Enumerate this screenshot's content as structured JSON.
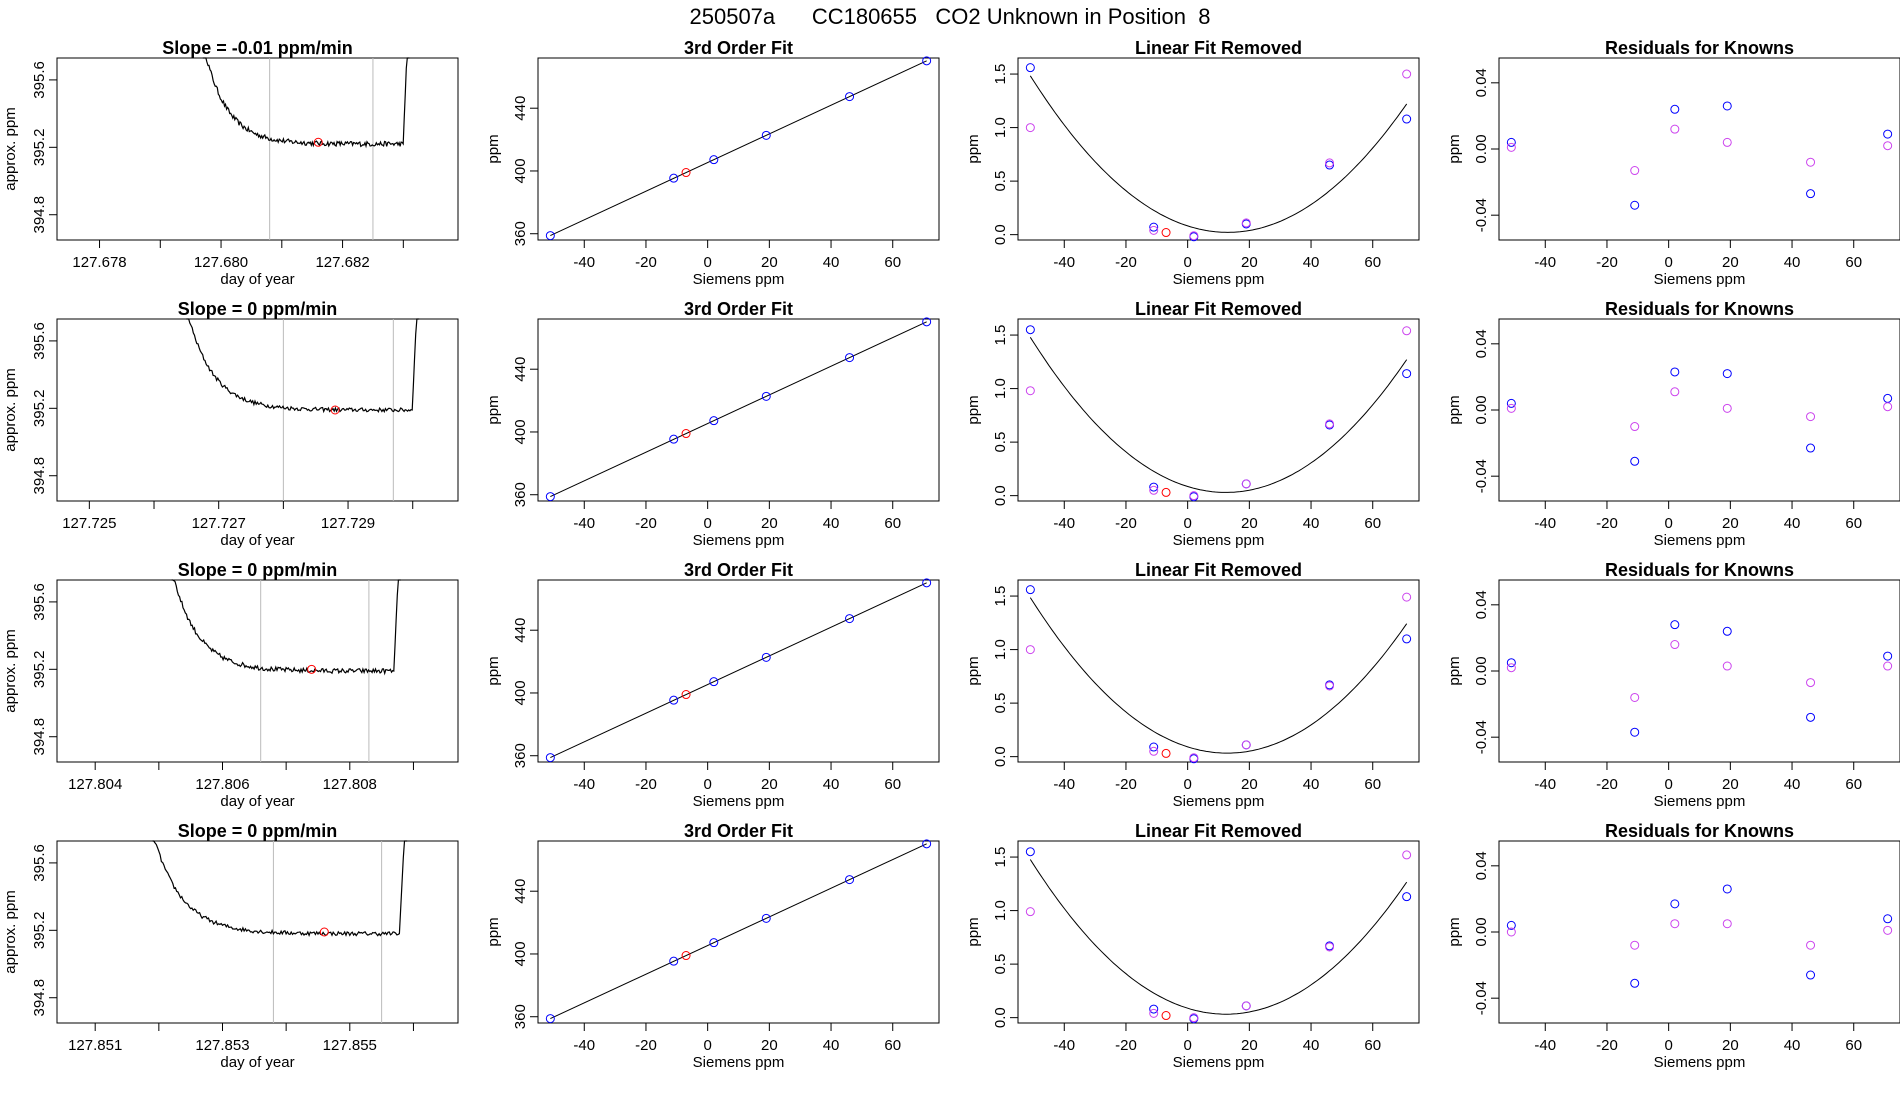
{
  "figure": {
    "title": "250507a      CC180655   CO2 Unknown in Position  8"
  },
  "colors": {
    "known": "#0000ff",
    "residual_alt": "#cc44ee",
    "unknown": "#ff0000",
    "cursor_lines": "#bbbbbb",
    "line": "#000000"
  },
  "chart_data": [
    {
      "row": 1,
      "type": "line",
      "title": "Slope =  -0.01  ppm/min",
      "xlabel": "day of year",
      "ylabel": "approx. ppm",
      "xlim": [
        127.6773,
        127.6839
      ],
      "ylim": [
        394.65,
        395.73
      ],
      "xticks": [
        127.678,
        127.68,
        127.682
      ],
      "xtick_labels": [
        "127.678",
        "127.680",
        "127.682"
      ],
      "xticks_minor": [
        127.679,
        127.681,
        127.683
      ],
      "yticks": [
        394.8,
        395.2,
        395.6
      ],
      "ytick_labels": [
        "394.8",
        "395.2",
        "395.6"
      ],
      "vlines": [
        127.6808,
        127.6825
      ],
      "trace": {
        "x_start": 127.6797,
        "x_end": 127.6831,
        "points": 200,
        "plateau": 395.22,
        "noise": 0.015
      },
      "marker": {
        "x": 127.6816,
        "y": 395.23
      }
    },
    {
      "row": 1,
      "type": "scatter",
      "title": "3rd Order Fit",
      "xlabel": "Siemens ppm",
      "ylabel": "ppm",
      "xlim": [
        -55,
        75
      ],
      "ylim": [
        356,
        472
      ],
      "xticks": [
        -40,
        -20,
        0,
        20,
        40,
        60
      ],
      "xtick_labels": [
        "-40",
        "-20",
        "0",
        "20",
        "40",
        "60"
      ],
      "yticks": [
        360,
        400,
        440
      ],
      "ytick_labels": [
        "360",
        "400",
        "440"
      ],
      "fit_line": [
        [
          -51,
          358.8
        ],
        [
          71,
          470.2
        ]
      ],
      "series": [
        {
          "color": "known",
          "x": [
            -51,
            -11,
            2,
            19,
            46,
            71
          ],
          "y": [
            358.8,
            395.4,
            407.2,
            422.7,
            447.4,
            470.2
          ]
        },
        {
          "color": "unknown",
          "x": [
            -7
          ],
          "y": [
            399.0
          ]
        }
      ]
    },
    {
      "row": 1,
      "type": "scatter",
      "title": "Linear Fit Removed",
      "xlabel": "Siemens ppm",
      "ylabel": "ppm",
      "xlim": [
        -55,
        75
      ],
      "ylim": [
        -0.05,
        1.65
      ],
      "xticks": [
        -40,
        -20,
        0,
        20,
        40,
        60
      ],
      "xtick_labels": [
        "-40",
        "-20",
        "0",
        "20",
        "40",
        "60"
      ],
      "yticks": [
        0.0,
        0.5,
        1.0,
        1.5
      ],
      "ytick_labels": [
        "0.0",
        "0.5",
        "1.0",
        "1.5"
      ],
      "series": [
        {
          "color": "known",
          "x": [
            -51,
            -11,
            2,
            19,
            46,
            71
          ],
          "y": [
            1.56,
            0.07,
            -0.02,
            0.1,
            0.65,
            1.08
          ]
        },
        {
          "color": "residual_alt",
          "x": [
            -51,
            -11,
            2,
            19,
            46,
            71
          ],
          "y": [
            1.0,
            0.04,
            -0.01,
            0.11,
            0.67,
            1.5
          ]
        },
        {
          "color": "unknown",
          "x": [
            -7
          ],
          "y": [
            0.02
          ]
        }
      ]
    },
    {
      "row": 1,
      "type": "scatter",
      "title": "Residuals for Knowns",
      "xlabel": "Siemens ppm",
      "ylabel": "ppm",
      "xlim": [
        -55,
        75
      ],
      "ylim": [
        -0.055,
        0.055
      ],
      "xticks": [
        -40,
        -20,
        0,
        20,
        40,
        60
      ],
      "xtick_labels": [
        "-40",
        "-20",
        "0",
        "20",
        "40",
        "60"
      ],
      "yticks": [
        -0.04,
        0.0,
        0.04
      ],
      "ytick_labels": [
        "-0.04",
        "0.00",
        "0.04"
      ],
      "series": [
        {
          "color": "known",
          "x": [
            -51,
            -11,
            2,
            19,
            46,
            71
          ],
          "y": [
            0.004,
            -0.034,
            0.024,
            0.026,
            -0.027,
            0.009
          ]
        },
        {
          "color": "residual_alt",
          "x": [
            -51,
            -11,
            2,
            19,
            46,
            71
          ],
          "y": [
            0.001,
            -0.013,
            0.012,
            0.004,
            -0.008,
            0.002
          ]
        }
      ]
    },
    {
      "row": 2,
      "type": "line",
      "title": "Slope =  0  ppm/min",
      "xlabel": "day of year",
      "ylabel": "approx. ppm",
      "xlim": [
        127.7245,
        127.7307
      ],
      "ylim": [
        394.65,
        395.73
      ],
      "xticks": [
        127.725,
        127.727,
        127.729
      ],
      "xtick_labels": [
        "127.725",
        "127.727",
        "127.729"
      ],
      "xticks_minor": [
        127.726,
        127.728,
        127.73
      ],
      "yticks": [
        394.8,
        395.2,
        395.6
      ],
      "ytick_labels": [
        "394.8",
        "395.2",
        "395.6"
      ],
      "vlines": [
        127.728,
        127.7297
      ],
      "trace": {
        "x_start": 127.7265,
        "x_end": 127.7301,
        "points": 200,
        "plateau": 395.19,
        "noise": 0.012
      },
      "marker": {
        "x": 127.7288,
        "y": 395.19
      }
    },
    {
      "row": 2,
      "type": "scatter",
      "title": "3rd Order Fit",
      "xlabel": "Siemens ppm",
      "ylabel": "ppm",
      "xlim": [
        -55,
        75
      ],
      "ylim": [
        356,
        472
      ],
      "xticks": [
        -40,
        -20,
        0,
        20,
        40,
        60
      ],
      "xtick_labels": [
        "-40",
        "-20",
        "0",
        "20",
        "40",
        "60"
      ],
      "yticks": [
        360,
        400,
        440
      ],
      "ytick_labels": [
        "360",
        "400",
        "440"
      ],
      "fit_line": [
        [
          -51,
          358.8
        ],
        [
          71,
          470.2
        ]
      ],
      "series": [
        {
          "color": "known",
          "x": [
            -51,
            -11,
            2,
            19,
            46,
            71
          ],
          "y": [
            358.8,
            395.4,
            407.2,
            422.7,
            447.4,
            470.2
          ]
        },
        {
          "color": "unknown",
          "x": [
            -7
          ],
          "y": [
            399.0
          ]
        }
      ]
    },
    {
      "row": 2,
      "type": "scatter",
      "title": "Linear Fit Removed",
      "xlabel": "Siemens ppm",
      "ylabel": "ppm",
      "xlim": [
        -55,
        75
      ],
      "ylim": [
        -0.05,
        1.65
      ],
      "xticks": [
        -40,
        -20,
        0,
        20,
        40,
        60
      ],
      "xtick_labels": [
        "-40",
        "-20",
        "0",
        "20",
        "40",
        "60"
      ],
      "yticks": [
        0.0,
        0.5,
        1.0,
        1.5
      ],
      "ytick_labels": [
        "0.0",
        "0.5",
        "1.0",
        "1.5"
      ],
      "series": [
        {
          "color": "known",
          "x": [
            -51,
            -11,
            2,
            19,
            46,
            71
          ],
          "y": [
            1.55,
            0.08,
            -0.01,
            0.11,
            0.66,
            1.14
          ]
        },
        {
          "color": "residual_alt",
          "x": [
            -51,
            -11,
            2,
            19,
            46,
            71
          ],
          "y": [
            0.98,
            0.05,
            0.0,
            0.11,
            0.67,
            1.54
          ]
        },
        {
          "color": "unknown",
          "x": [
            -7
          ],
          "y": [
            0.03
          ]
        }
      ]
    },
    {
      "row": 2,
      "type": "scatter",
      "title": "Residuals for Knowns",
      "xlabel": "Siemens ppm",
      "ylabel": "ppm",
      "xlim": [
        -55,
        75
      ],
      "ylim": [
        -0.055,
        0.055
      ],
      "xticks": [
        -40,
        -20,
        0,
        20,
        40,
        60
      ],
      "xtick_labels": [
        "-40",
        "-20",
        "0",
        "20",
        "40",
        "60"
      ],
      "yticks": [
        -0.04,
        0.0,
        0.04
      ],
      "ytick_labels": [
        "-0.04",
        "0.00",
        "0.04"
      ],
      "series": [
        {
          "color": "known",
          "x": [
            -51,
            -11,
            2,
            19,
            46,
            71
          ],
          "y": [
            0.004,
            -0.031,
            0.023,
            0.022,
            -0.023,
            0.007
          ]
        },
        {
          "color": "residual_alt",
          "x": [
            -51,
            -11,
            2,
            19,
            46,
            71
          ],
          "y": [
            0.001,
            -0.01,
            0.011,
            0.001,
            -0.004,
            0.002
          ]
        }
      ]
    },
    {
      "row": 3,
      "type": "line",
      "title": "Slope =  0  ppm/min",
      "xlabel": "day of year",
      "ylabel": "approx. ppm",
      "xlim": [
        127.8034,
        127.8097
      ],
      "ylim": [
        394.65,
        395.73
      ],
      "xticks": [
        127.804,
        127.806,
        127.808
      ],
      "xtick_labels": [
        "127.804",
        "127.806",
        "127.808"
      ],
      "xticks_minor": [
        127.805,
        127.807,
        127.809
      ],
      "yticks": [
        394.8,
        395.2,
        395.6
      ],
      "ytick_labels": [
        "394.8",
        "395.2",
        "395.6"
      ],
      "vlines": [
        127.8066,
        127.8083
      ],
      "trace": {
        "x_start": 127.8052,
        "x_end": 127.8088,
        "points": 200,
        "plateau": 395.19,
        "noise": 0.014
      },
      "marker": {
        "x": 127.8074,
        "y": 395.2
      }
    },
    {
      "row": 3,
      "type": "scatter",
      "title": "3rd Order Fit",
      "xlabel": "Siemens ppm",
      "ylabel": "ppm",
      "xlim": [
        -55,
        75
      ],
      "ylim": [
        356,
        472
      ],
      "xticks": [
        -40,
        -20,
        0,
        20,
        40,
        60
      ],
      "xtick_labels": [
        "-40",
        "-20",
        "0",
        "20",
        "40",
        "60"
      ],
      "yticks": [
        360,
        400,
        440
      ],
      "ytick_labels": [
        "360",
        "400",
        "440"
      ],
      "fit_line": [
        [
          -51,
          358.8
        ],
        [
          71,
          470.2
        ]
      ],
      "series": [
        {
          "color": "known",
          "x": [
            -51,
            -11,
            2,
            19,
            46,
            71
          ],
          "y": [
            358.8,
            395.4,
            407.2,
            422.7,
            447.4,
            470.2
          ]
        },
        {
          "color": "unknown",
          "x": [
            -7
          ],
          "y": [
            399.0
          ]
        }
      ]
    },
    {
      "row": 3,
      "type": "scatter",
      "title": "Linear Fit Removed",
      "xlabel": "Siemens ppm",
      "ylabel": "ppm",
      "xlim": [
        -55,
        75
      ],
      "ylim": [
        -0.05,
        1.65
      ],
      "xticks": [
        -40,
        -20,
        0,
        20,
        40,
        60
      ],
      "xtick_labels": [
        "-40",
        "-20",
        "0",
        "20",
        "40",
        "60"
      ],
      "yticks": [
        0.0,
        0.5,
        1.0,
        1.5
      ],
      "ytick_labels": [
        "0.0",
        "0.5",
        "1.0",
        "1.5"
      ],
      "series": [
        {
          "color": "known",
          "x": [
            -51,
            -11,
            2,
            19,
            46,
            71
          ],
          "y": [
            1.56,
            0.09,
            -0.02,
            0.11,
            0.67,
            1.1
          ]
        },
        {
          "color": "residual_alt",
          "x": [
            -51,
            -11,
            2,
            19,
            46,
            71
          ],
          "y": [
            1.0,
            0.05,
            -0.01,
            0.11,
            0.66,
            1.49
          ]
        },
        {
          "color": "unknown",
          "x": [
            -7
          ],
          "y": [
            0.03
          ]
        }
      ]
    },
    {
      "row": 3,
      "type": "scatter",
      "title": "Residuals for Knowns",
      "xlabel": "Siemens ppm",
      "ylabel": "ppm",
      "xlim": [
        -55,
        75
      ],
      "ylim": [
        -0.055,
        0.055
      ],
      "xticks": [
        -40,
        -20,
        0,
        20,
        40,
        60
      ],
      "xtick_labels": [
        "-40",
        "-20",
        "0",
        "20",
        "40",
        "60"
      ],
      "yticks": [
        -0.04,
        0.0,
        0.04
      ],
      "ytick_labels": [
        "-0.04",
        "0.00",
        "0.04"
      ],
      "series": [
        {
          "color": "known",
          "x": [
            -51,
            -11,
            2,
            19,
            46,
            71
          ],
          "y": [
            0.005,
            -0.037,
            0.028,
            0.024,
            -0.028,
            0.009
          ]
        },
        {
          "color": "residual_alt",
          "x": [
            -51,
            -11,
            2,
            19,
            46,
            71
          ],
          "y": [
            0.002,
            -0.016,
            0.016,
            0.003,
            -0.007,
            0.003
          ]
        }
      ]
    },
    {
      "row": 4,
      "type": "line",
      "title": "Slope =  0  ppm/min",
      "xlabel": "day of year",
      "ylabel": "approx. ppm",
      "xlim": [
        127.8504,
        127.8567
      ],
      "ylim": [
        394.65,
        395.73
      ],
      "xticks": [
        127.851,
        127.853,
        127.855
      ],
      "xtick_labels": [
        "127.851",
        "127.853",
        "127.855"
      ],
      "xticks_minor": [
        127.852,
        127.854,
        127.856
      ],
      "yticks": [
        394.8,
        395.2,
        395.6
      ],
      "ytick_labels": [
        "394.8",
        "395.2",
        "395.6"
      ],
      "vlines": [
        127.8538,
        127.8555
      ],
      "trace": {
        "x_start": 127.8519,
        "x_end": 127.8559,
        "points": 200,
        "plateau": 395.18,
        "noise": 0.012
      },
      "marker": {
        "x": 127.8546,
        "y": 395.19
      }
    },
    {
      "row": 4,
      "type": "scatter",
      "title": "3rd Order Fit",
      "xlabel": "Siemens ppm",
      "ylabel": "ppm",
      "xlim": [
        -55,
        75
      ],
      "ylim": [
        356,
        472
      ],
      "xticks": [
        -40,
        -20,
        0,
        20,
        40,
        60
      ],
      "xtick_labels": [
        "-40",
        "-20",
        "0",
        "20",
        "40",
        "60"
      ],
      "yticks": [
        360,
        400,
        440
      ],
      "ytick_labels": [
        "360",
        "400",
        "440"
      ],
      "fit_line": [
        [
          -51,
          358.8
        ],
        [
          71,
          470.2
        ]
      ],
      "series": [
        {
          "color": "known",
          "x": [
            -51,
            -11,
            2,
            19,
            46,
            71
          ],
          "y": [
            358.8,
            395.4,
            407.2,
            422.7,
            447.4,
            470.2
          ]
        },
        {
          "color": "unknown",
          "x": [
            -7
          ],
          "y": [
            399.0
          ]
        }
      ]
    },
    {
      "row": 4,
      "type": "scatter",
      "title": "Linear Fit Removed",
      "xlabel": "Siemens ppm",
      "ylabel": "ppm",
      "xlim": [
        -55,
        75
      ],
      "ylim": [
        -0.05,
        1.65
      ],
      "xticks": [
        -40,
        -20,
        0,
        20,
        40,
        60
      ],
      "xtick_labels": [
        "-40",
        "-20",
        "0",
        "20",
        "40",
        "60"
      ],
      "yticks": [
        0.0,
        0.5,
        1.0,
        1.5
      ],
      "ytick_labels": [
        "0.0",
        "0.5",
        "1.0",
        "1.5"
      ],
      "series": [
        {
          "color": "known",
          "x": [
            -51,
            -11,
            2,
            19,
            46,
            71
          ],
          "y": [
            1.55,
            0.08,
            -0.01,
            0.11,
            0.67,
            1.13
          ]
        },
        {
          "color": "residual_alt",
          "x": [
            -51,
            -11,
            2,
            19,
            46,
            71
          ],
          "y": [
            0.99,
            0.04,
            0.0,
            0.11,
            0.66,
            1.52
          ]
        },
        {
          "color": "unknown",
          "x": [
            -7
          ],
          "y": [
            0.02
          ]
        }
      ]
    },
    {
      "row": 4,
      "type": "scatter",
      "title": "Residuals for Knowns",
      "xlabel": "Siemens ppm",
      "ylabel": "ppm",
      "xlim": [
        -55,
        75
      ],
      "ylim": [
        -0.055,
        0.055
      ],
      "xticks": [
        -40,
        -20,
        0,
        20,
        40,
        60
      ],
      "xtick_labels": [
        "-40",
        "-20",
        "0",
        "20",
        "40",
        "60"
      ],
      "yticks": [
        -0.04,
        0.0,
        0.04
      ],
      "ytick_labels": [
        "-0.04",
        "0.00",
        "0.04"
      ],
      "series": [
        {
          "color": "known",
          "x": [
            -51,
            -11,
            2,
            19,
            46,
            71
          ],
          "y": [
            0.004,
            -0.031,
            0.017,
            0.026,
            -0.026,
            0.008
          ]
        },
        {
          "color": "residual_alt",
          "x": [
            -51,
            -11,
            2,
            19,
            46,
            71
          ],
          "y": [
            0.0,
            -0.008,
            0.005,
            0.005,
            -0.008,
            0.001
          ]
        }
      ]
    }
  ]
}
